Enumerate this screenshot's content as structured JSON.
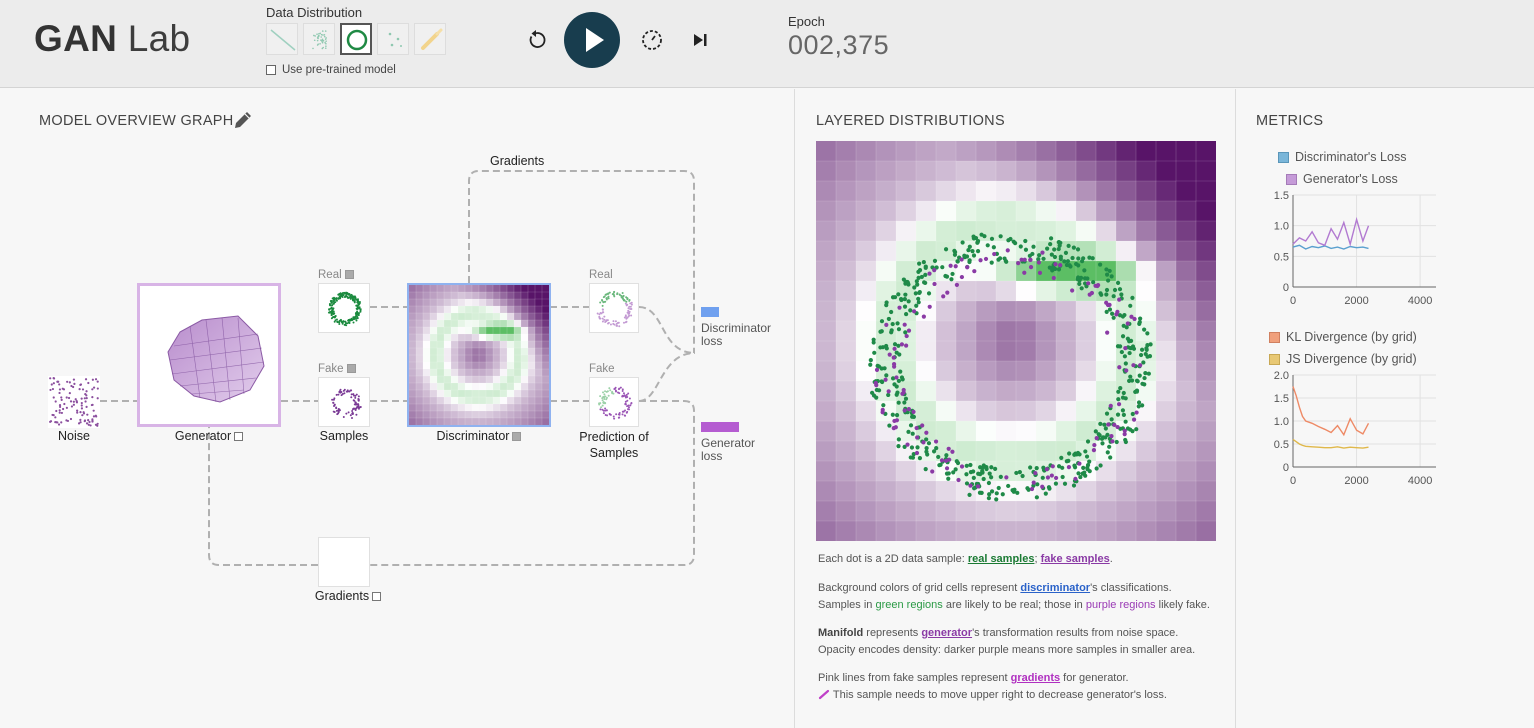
{
  "header": {
    "title_bold": "GAN",
    "title_light": "Lab",
    "data_distribution_label": "Data Distribution",
    "distributions": [
      {
        "icon": "line-distribution-icon",
        "selected": false
      },
      {
        "icon": "gaussian-blobs-distribution-icon",
        "selected": false
      },
      {
        "icon": "ring-distribution-icon",
        "selected": true
      },
      {
        "icon": "dots-distribution-icon",
        "selected": false
      },
      {
        "icon": "draw-brush-distribution-icon",
        "selected": false
      }
    ],
    "pretrained_label": "Use pre-trained model",
    "epoch_label": "Epoch",
    "epoch_value": "002,375"
  },
  "model": {
    "title": "MODEL OVERVIEW GRAPH",
    "gradients_top": "Gradients",
    "noise_label": "Noise",
    "generator_label": "Generator",
    "real_label": "Real",
    "fake_label": "Fake",
    "samples_label": "Samples",
    "discriminator_label": "Discriminator",
    "pred_real_label": "Real",
    "pred_fake_label": "Fake",
    "prediction_label_1": "Prediction of",
    "prediction_label_2": "Samples",
    "disc_loss_1": "Discriminator",
    "disc_loss_2": "loss",
    "gen_loss_1": "Generator",
    "gen_loss_2": "loss",
    "gradients_bottom": "Gradients",
    "colors": {
      "disc_loss": "#6fa0ef",
      "gen_loss": "#b55cd1"
    }
  },
  "distributions": {
    "title": "LAYERED DISTRIBUTIONS",
    "line1_pre": "Each dot is a 2D data sample: ",
    "line1_real": "real samples",
    "line1_sep": "; ",
    "line1_fake": "fake samples",
    "line1_end": ".",
    "line2_pre": "Background colors of grid cells represent ",
    "line2_disc": "discriminator",
    "line2_post": "'s classifications.",
    "line3_pre": "Samples in ",
    "line3_green": "green regions",
    "line3_mid": " are likely to be real; those in ",
    "line3_purple": "purple regions",
    "line3_end": " likely fake.",
    "line4_bold": "Manifold",
    "line4_pre": " represents ",
    "line4_gen": "generator",
    "line4_post": "'s transformation results from noise space.",
    "line5": "Opacity encodes density: darker purple means more samples in smaller area.",
    "line6_pre": "Pink lines from fake samples represent ",
    "line6_grad": "gradients",
    "line6_post": " for generator.",
    "line7": "This sample needs to move upper right to decrease generator's loss."
  },
  "metrics": {
    "title": "METRICS",
    "legend1": [
      {
        "label": "Discriminator's Loss",
        "color": "#7ab6d9"
      },
      {
        "label": "Generator's Loss",
        "color": "#c59bd8"
      }
    ],
    "legend2": [
      {
        "label": "KL Divergence (by grid)",
        "color": "#f0a07c"
      },
      {
        "label": "JS Divergence (by grid)",
        "color": "#e8c874"
      }
    ]
  },
  "chart_data": [
    {
      "type": "line",
      "title": "",
      "xlim": [
        0,
        4500
      ],
      "ylim": [
        0,
        1.5
      ],
      "x_ticks": [
        "0",
        "2000",
        "4000"
      ],
      "y_ticks": [
        "0",
        "0.5",
        "1.0",
        "1.5"
      ],
      "series": [
        {
          "name": "Discriminator's Loss",
          "color": "#5aa0cf",
          "x": [
            0,
            200,
            400,
            600,
            800,
            1000,
            1200,
            1400,
            1600,
            1800,
            2000,
            2200,
            2375
          ],
          "values": [
            0.65,
            0.68,
            0.62,
            0.66,
            0.64,
            0.67,
            0.63,
            0.65,
            0.62,
            0.66,
            0.64,
            0.65,
            0.63
          ]
        },
        {
          "name": "Generator's Loss",
          "color": "#b27ad1",
          "x": [
            0,
            200,
            400,
            600,
            800,
            1000,
            1200,
            1400,
            1600,
            1800,
            2000,
            2200,
            2375
          ],
          "values": [
            0.7,
            0.8,
            0.75,
            0.9,
            0.72,
            0.68,
            0.95,
            0.78,
            1.05,
            0.7,
            1.1,
            0.75,
            1.0
          ]
        }
      ],
      "grid": true
    },
    {
      "type": "line",
      "title": "",
      "xlim": [
        0,
        4500
      ],
      "ylim": [
        0,
        2.0
      ],
      "x_ticks": [
        "0",
        "2000",
        "4000"
      ],
      "y_ticks": [
        "0",
        "0.5",
        "1.0",
        "1.5",
        "2.0"
      ],
      "series": [
        {
          "name": "KL Divergence (by grid)",
          "color": "#ee8a66",
          "x": [
            0,
            100,
            200,
            300,
            400,
            600,
            800,
            1000,
            1200,
            1400,
            1600,
            1800,
            2000,
            2200,
            2375
          ],
          "values": [
            1.75,
            1.55,
            1.3,
            1.1,
            1.0,
            0.95,
            0.88,
            0.82,
            0.75,
            0.9,
            0.7,
            1.05,
            0.8,
            0.72,
            0.95
          ]
        },
        {
          "name": "JS Divergence (by grid)",
          "color": "#e0b84a",
          "x": [
            0,
            100,
            200,
            300,
            400,
            600,
            800,
            1000,
            1200,
            1400,
            1600,
            1800,
            2000,
            2200,
            2375
          ],
          "values": [
            0.6,
            0.55,
            0.5,
            0.47,
            0.45,
            0.44,
            0.43,
            0.42,
            0.42,
            0.44,
            0.41,
            0.43,
            0.42,
            0.41,
            0.43
          ]
        }
      ],
      "grid": true
    }
  ]
}
